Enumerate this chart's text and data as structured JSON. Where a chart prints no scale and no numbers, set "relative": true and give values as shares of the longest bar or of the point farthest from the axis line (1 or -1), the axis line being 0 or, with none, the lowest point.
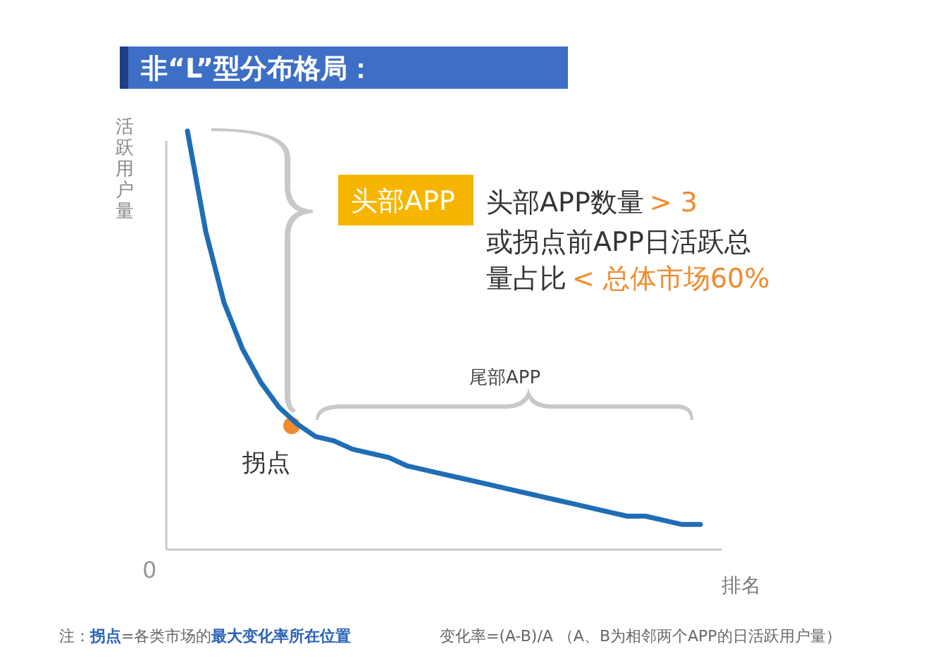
{
  "chart_data": {
    "type": "line",
    "relative": true,
    "title": "非“L”型分布格局：",
    "xlabel": "排名",
    "ylabel": "活跃用户量",
    "categories": [
      null,
      null,
      null,
      null,
      null,
      null,
      null,
      null,
      null,
      null,
      null,
      null,
      null,
      null,
      null,
      null,
      null,
      null,
      null,
      null,
      null,
      null,
      null,
      null,
      null,
      null,
      null,
      null,
      null
    ],
    "series": [
      {
        "type": "line",
        "color": "#1f6db5",
        "values": [
          1.0,
          0.76,
          0.59,
          0.48,
          0.4,
          0.34,
          0.3,
          0.27,
          0.26,
          0.24,
          0.23,
          0.22,
          0.2,
          0.19,
          0.18,
          0.17,
          0.16,
          0.15,
          0.14,
          0.13,
          0.12,
          0.11,
          0.1,
          0.09,
          0.08,
          0.08,
          0.07,
          0.06,
          0.06
        ]
      }
    ],
    "annotations": [
      "0",
      "头部APP",
      "头部APP数量",
      "> 3",
      "或拐点前APP日活跃总",
      "量占比",
      "< 总体市场60%",
      "尾部APP",
      "拐点",
      "注：**拐点**=各类市场的**最大变化率所在位置**",
      "变化率=(A-B)/A （A、B为相邻两个APP的日活跃用户量）"
    ]
  }
}
